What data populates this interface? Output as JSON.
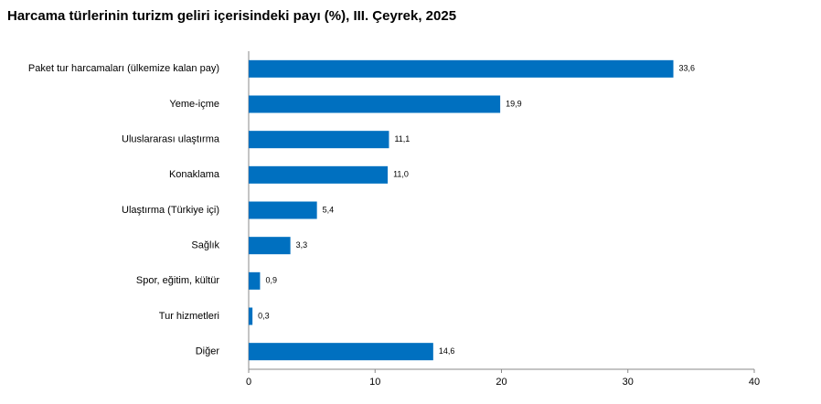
{
  "chart_data": {
    "type": "hbar",
    "title": "Harcama türlerinin turizm geliri içerisindeki payı (%), III. Çeyrek, 2025",
    "categories": [
      "Paket tur harcamaları (ülkemize kalan pay)",
      "Yeme-içme",
      "Uluslararası ulaştırma",
      "Konaklama",
      "Ulaştırma (Türkiye içi)",
      "Sağlık",
      "Spor, eğitim, kültür",
      "Tur hizmetleri",
      "Diğer"
    ],
    "values": [
      33.6,
      19.9,
      11.1,
      11.0,
      5.4,
      3.3,
      0.9,
      0.3,
      14.6
    ],
    "value_labels": [
      "33,6",
      "19,9",
      "11,1",
      "11,0",
      "5,4",
      "3,3",
      "0,9",
      "0,3",
      "14,6"
    ],
    "color": "#0070c0",
    "xlim": [
      0,
      40
    ],
    "xticks": [
      0,
      10,
      20,
      30,
      40
    ],
    "grid": false
  }
}
